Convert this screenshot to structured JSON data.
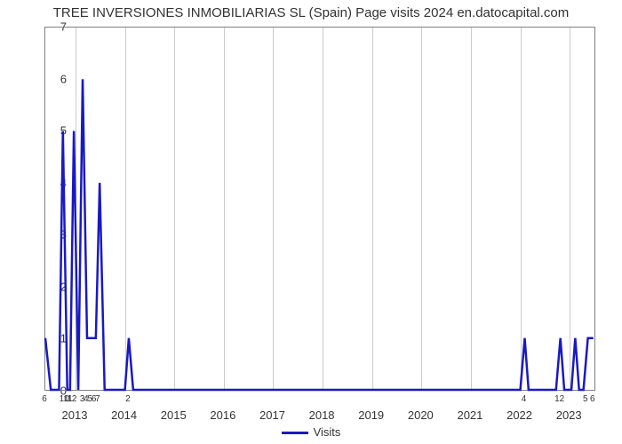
{
  "chart": {
    "type": "line",
    "title": "TREE INVERSIONES INMOBILIARIAS SL (Spain) Page visits 2024 en.datocapital.com",
    "title_fontsize": 15,
    "title_color": "#333333",
    "background_color": "#ffffff",
    "plot_border_color": "#808080",
    "grid_color": "#cccccc",
    "yaxis": {
      "min": 0,
      "max": 7,
      "ticks": [
        0,
        1,
        2,
        3,
        4,
        5,
        6,
        7
      ],
      "label_fontsize": 13,
      "label_color": "#333333"
    },
    "xaxis": {
      "major_labels": [
        "2013",
        "2014",
        "2015",
        "2016",
        "2017",
        "2018",
        "2019",
        "2020",
        "2021",
        "2022",
        "2023"
      ],
      "major_positions": [
        0.055,
        0.145,
        0.235,
        0.325,
        0.415,
        0.505,
        0.595,
        0.685,
        0.775,
        0.865,
        0.955
      ],
      "minor_labels": [
        {
          "text": "6",
          "pos": 0.0
        },
        {
          "text": "10",
          "pos": 0.036
        },
        {
          "text": "11",
          "pos": 0.043
        },
        {
          "text": "12",
          "pos": 0.05
        },
        {
          "text": "3",
          "pos": 0.069
        },
        {
          "text": "4",
          "pos": 0.076
        },
        {
          "text": "5",
          "pos": 0.083
        },
        {
          "text": "6",
          "pos": 0.09
        },
        {
          "text": "7",
          "pos": 0.097
        },
        {
          "text": "2",
          "pos": 0.152
        },
        {
          "text": "4",
          "pos": 0.873
        },
        {
          "text": "12",
          "pos": 0.938
        },
        {
          "text": "5",
          "pos": 0.985
        },
        {
          "text": "6",
          "pos": 0.998
        }
      ],
      "label_fontsize": 13
    },
    "series": {
      "name": "Visits",
      "color": "#1919c5",
      "line_width": 2.5,
      "points": [
        {
          "x": 0.0,
          "y": 1.0
        },
        {
          "x": 0.01,
          "y": 0.0
        },
        {
          "x": 0.025,
          "y": 0.0
        },
        {
          "x": 0.032,
          "y": 5.0
        },
        {
          "x": 0.04,
          "y": 0.0
        },
        {
          "x": 0.045,
          "y": 0.0
        },
        {
          "x": 0.052,
          "y": 5.0
        },
        {
          "x": 0.06,
          "y": 0.0
        },
        {
          "x": 0.068,
          "y": 6.0
        },
        {
          "x": 0.076,
          "y": 1.0
        },
        {
          "x": 0.085,
          "y": 1.0
        },
        {
          "x": 0.092,
          "y": 1.0
        },
        {
          "x": 0.099,
          "y": 4.0
        },
        {
          "x": 0.108,
          "y": 0.0
        },
        {
          "x": 0.145,
          "y": 0.0
        },
        {
          "x": 0.152,
          "y": 1.0
        },
        {
          "x": 0.16,
          "y": 0.0
        },
        {
          "x": 0.865,
          "y": 0.0
        },
        {
          "x": 0.873,
          "y": 1.0
        },
        {
          "x": 0.88,
          "y": 0.0
        },
        {
          "x": 0.93,
          "y": 0.0
        },
        {
          "x": 0.938,
          "y": 1.0
        },
        {
          "x": 0.945,
          "y": 0.0
        },
        {
          "x": 0.958,
          "y": 0.0
        },
        {
          "x": 0.965,
          "y": 1.0
        },
        {
          "x": 0.972,
          "y": 0.0
        },
        {
          "x": 0.98,
          "y": 0.0
        },
        {
          "x": 0.988,
          "y": 1.0
        },
        {
          "x": 0.998,
          "y": 1.0
        }
      ]
    },
    "legend": {
      "label": "Visits",
      "line_color": "#1919c5",
      "fontsize": 13
    }
  }
}
